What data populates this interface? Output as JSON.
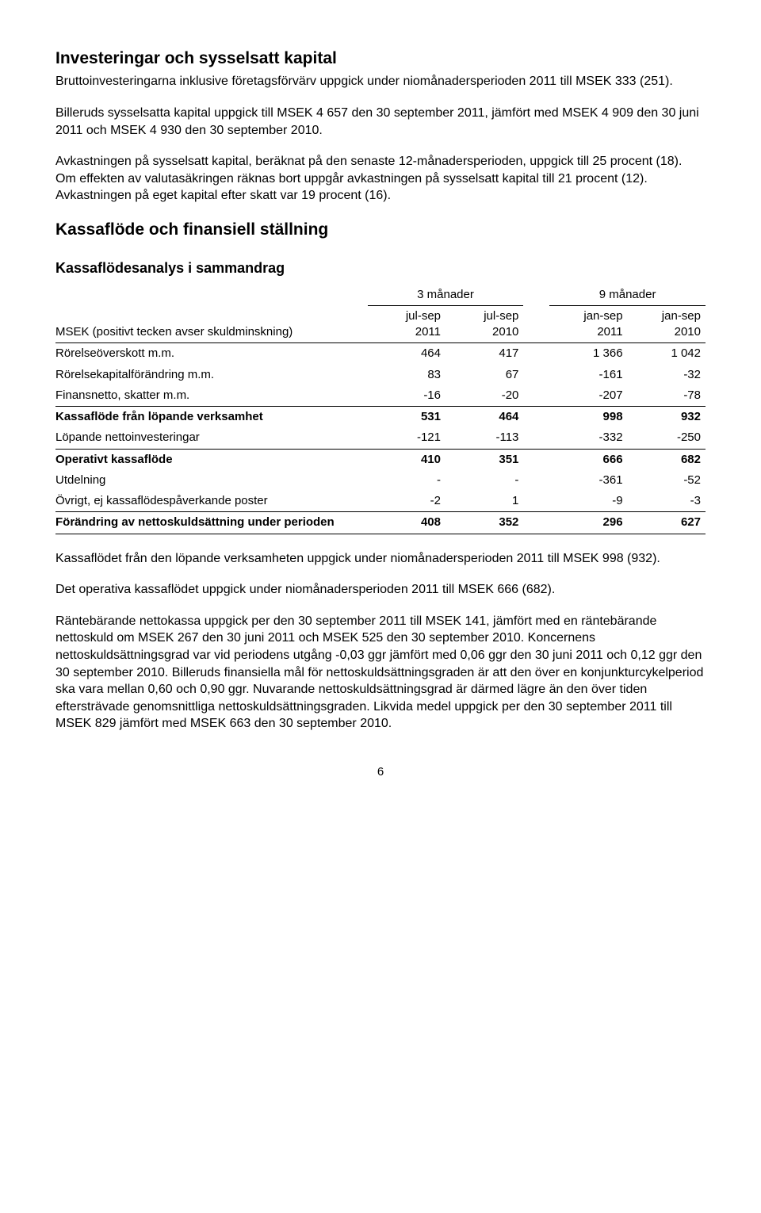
{
  "section1": {
    "heading": "Investeringar och sysselsatt kapital",
    "p1": "Bruttoinvesteringarna inklusive företagsförvärv uppgick under niomånadersperioden 2011 till MSEK 333 (251).",
    "p2": "Billeruds sysselsatta kapital uppgick till MSEK 4 657 den 30 september 2011, jämfört med MSEK 4 909 den 30 juni 2011 och MSEK 4 930 den 30 september 2010.",
    "p3": "Avkastningen på sysselsatt kapital, beräknat på den senaste 12-månadersperioden, uppgick till 25 procent (18). Om effekten av valutasäkringen räknas bort uppgår avkastningen på sysselsatt kapital till 21 procent (12). Avkastningen på eget kapital efter skatt var 19 procent (16)."
  },
  "section2": {
    "heading": "Kassaflöde och finansiell ställning",
    "subheading": "Kassaflödesanalys i sammandrag"
  },
  "table": {
    "period_headers": [
      "3 månader",
      "9 månader"
    ],
    "col_labels": {
      "row_label": "MSEK (positivt tecken avser skuldminskning)",
      "c1": "jul-sep 2011",
      "c2": "jul-sep 2010",
      "c3": "jan-sep 2011",
      "c4": "jan-sep 2010"
    },
    "rows": [
      {
        "label": "Rörelseöverskott m.m.",
        "v": [
          "464",
          "417",
          "1 366",
          "1 042"
        ],
        "bold": false
      },
      {
        "label": "Rörelsekapitalförändring m.m.",
        "v": [
          "83",
          "67",
          "-161",
          "-32"
        ],
        "bold": false
      },
      {
        "label": "Finansnetto, skatter m.m.",
        "v": [
          "-16",
          "-20",
          "-207",
          "-78"
        ],
        "bold": false
      },
      {
        "label": "Kassaflöde från löpande verksamhet",
        "v": [
          "531",
          "464",
          "998",
          "932"
        ],
        "bold": true,
        "top": true
      },
      {
        "label": "Löpande nettoinvesteringar",
        "v": [
          "-121",
          "-113",
          "-332",
          "-250"
        ],
        "bold": false
      },
      {
        "label": "Operativt kassaflöde",
        "v": [
          "410",
          "351",
          "666",
          "682"
        ],
        "bold": true,
        "top": true
      },
      {
        "label": "Utdelning",
        "v": [
          "-",
          "-",
          "-361",
          "-52"
        ],
        "bold": false
      },
      {
        "label": "Övrigt, ej kassaflödespåverkande poster",
        "v": [
          "-2",
          "1",
          "-9",
          "-3"
        ],
        "bold": false
      },
      {
        "label": "Förändring av nettoskuldsättning under perioden",
        "v": [
          "408",
          "352",
          "296",
          "627"
        ],
        "bold": true,
        "top": true,
        "bottom": true
      }
    ]
  },
  "below": {
    "p1": "Kassaflödet från den löpande verksamheten uppgick under niomånadersperioden 2011 till MSEK 998 (932).",
    "p2": "Det operativa kassaflödet uppgick under niomånadersperioden 2011 till MSEK 666 (682).",
    "p3": "Räntebärande nettokassa uppgick per den 30 september 2011 till MSEK 141, jämfört med en räntebärande nettoskuld om MSEK 267 den 30 juni 2011 och MSEK 525 den 30 september 2010. Koncernens nettoskuldsättningsgrad var vid periodens utgång -0,03 ggr jämfört med 0,06 ggr den 30 juni 2011 och 0,12 ggr den 30 september 2010. Billeruds finansiella mål för nettoskuldsättningsgraden är att den över en konjunkturcykelperiod ska vara mellan 0,60 och 0,90 ggr. Nuvarande nettoskuldsättningsgrad är därmed lägre än den över tiden eftersträvade genomsnittliga nettoskuldsättningsgraden. Likvida medel uppgick per den 30 september 2011 till MSEK 829 jämfört med MSEK 663 den 30 september 2010."
  },
  "page_number": "6"
}
